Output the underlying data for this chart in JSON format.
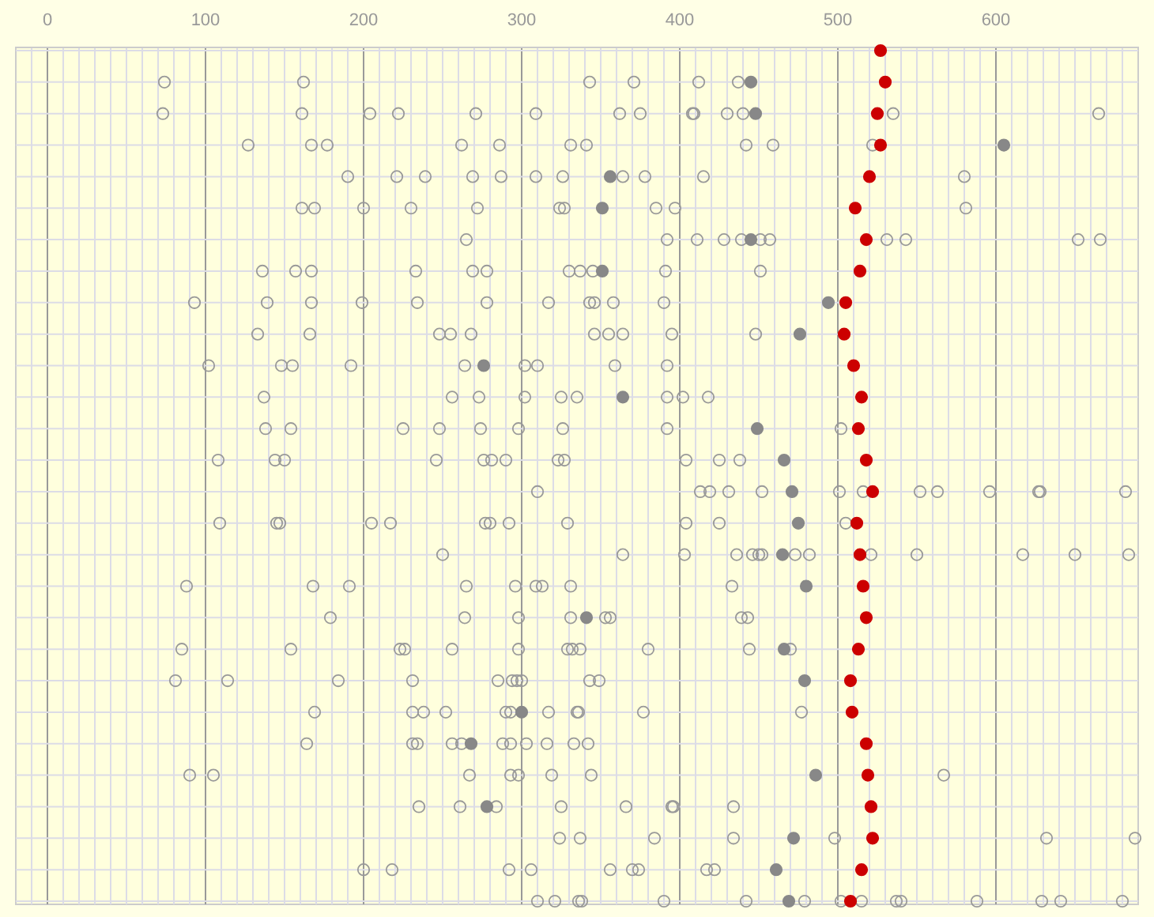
{
  "chart_data": {
    "type": "scatter",
    "orientation": "horizontal",
    "marker": "circle",
    "grid": true,
    "categories": [
      null,
      null,
      null,
      null,
      null,
      null,
      null,
      null,
      null,
      null,
      null,
      null,
      null,
      null,
      null,
      null,
      null,
      null,
      null,
      null,
      null,
      null,
      null,
      null,
      null,
      null,
      null,
      null
    ],
    "xlim": [
      -20,
      690
    ],
    "xticks": [
      {
        "value": -10,
        "label": null
      },
      0,
      {
        "value": 10,
        "label": null
      },
      {
        "value": 20,
        "label": null
      },
      {
        "value": 30,
        "label": null
      },
      {
        "value": 40,
        "label": null
      },
      {
        "value": 50,
        "label": null
      },
      {
        "value": 60,
        "label": null
      },
      {
        "value": 70,
        "label": null
      },
      {
        "value": 80,
        "label": null
      },
      {
        "value": 90,
        "label": null
      },
      100,
      {
        "value": 110,
        "label": null
      },
      {
        "value": 120,
        "label": null
      },
      {
        "value": 130,
        "label": null
      },
      {
        "value": 140,
        "label": null
      },
      {
        "value": 150,
        "label": null
      },
      {
        "value": 160,
        "label": null
      },
      {
        "value": 170,
        "label": null
      },
      {
        "value": 180,
        "label": null
      },
      {
        "value": 190,
        "label": null
      },
      200,
      {
        "value": 210,
        "label": null
      },
      {
        "value": 220,
        "label": null
      },
      {
        "value": 230,
        "label": null
      },
      {
        "value": 240,
        "label": null
      },
      {
        "value": 250,
        "label": null
      },
      {
        "value": 260,
        "label": null
      },
      {
        "value": 270,
        "label": null
      },
      {
        "value": 280,
        "label": null
      },
      {
        "value": 290,
        "label": null
      },
      300,
      {
        "value": 310,
        "label": null
      },
      {
        "value": 320,
        "label": null
      },
      {
        "value": 330,
        "label": null
      },
      {
        "value": 340,
        "label": null
      },
      {
        "value": 350,
        "label": null
      },
      {
        "value": 360,
        "label": null
      },
      {
        "value": 370,
        "label": null
      },
      {
        "value": 380,
        "label": null
      },
      {
        "value": 390,
        "label": null
      },
      400,
      {
        "value": 410,
        "label": null
      },
      {
        "value": 420,
        "label": null
      },
      {
        "value": 430,
        "label": null
      },
      {
        "value": 440,
        "label": null
      },
      {
        "value": 450,
        "label": null
      },
      {
        "value": 460,
        "label": null
      },
      {
        "value": 470,
        "label": null
      },
      {
        "value": 480,
        "label": null
      },
      {
        "value": 490,
        "label": null
      },
      500,
      {
        "value": 510,
        "label": null
      },
      {
        "value": 520,
        "label": null
      },
      {
        "value": 530,
        "label": null
      },
      {
        "value": 540,
        "label": null
      },
      {
        "value": 550,
        "label": null
      },
      {
        "value": 560,
        "label": null
      },
      {
        "value": 570,
        "label": null
      },
      {
        "value": 580,
        "label": null
      },
      {
        "value": 590,
        "label": null
      },
      600,
      {
        "value": 610,
        "label": null
      },
      {
        "value": 620,
        "label": null
      },
      {
        "value": 630,
        "label": null
      },
      {
        "value": 640,
        "label": null
      },
      {
        "value": 650,
        "label": null
      },
      {
        "value": 660,
        "label": null
      },
      {
        "value": 670,
        "label": null
      },
      {
        "value": 680,
        "label": null
      }
    ],
    "series": [
      {
        "color": "#999999",
        "values": [
          null,
          74,
          73,
          127,
          190,
          161,
          265,
          136,
          93,
          133,
          102,
          137,
          138,
          108,
          310,
          109,
          250,
          88,
          179,
          85,
          81,
          169,
          164,
          90,
          235,
          324,
          200,
          310
        ]
      },
      {
        "color": "#999999",
        "values": [
          null,
          162,
          161,
          167,
          221,
          169,
          392,
          157,
          139,
          166,
          148,
          256,
          154,
          144,
          413,
          145,
          364,
          168,
          264,
          154,
          114,
          231,
          231,
          105,
          261,
          337,
          218,
          321
        ]
      },
      {
        "color": "#999999",
        "values": [
          null,
          343,
          204,
          177,
          239,
          200,
          411,
          167,
          167,
          248,
          155,
          273,
          225,
          150,
          419,
          147,
          403,
          191,
          298,
          223,
          184,
          238,
          234,
          267,
          284,
          384,
          292,
          336
        ]
      },
      {
        "color": "#999999",
        "values": [
          null,
          371,
          222,
          262,
          269,
          230,
          428,
          233,
          199,
          255,
          192,
          302,
          248,
          246,
          431,
          205,
          436,
          265,
          331,
          226,
          231,
          252,
          256,
          293,
          325,
          434,
          306,
          338
        ]
      },
      {
        "color": "#999999",
        "values": [
          null,
          412,
          271,
          286,
          287,
          272,
          439,
          269,
          234,
          268,
          264,
          325,
          274,
          276,
          452,
          217,
          446,
          296,
          353,
          256,
          285,
          290,
          262,
          298,
          366,
          498,
          356,
          390
        ]
      },
      {
        "color": "#999999",
        "values": [
          null,
          437,
          309,
          331,
          309,
          324,
          null,
          278,
          278,
          346,
          302,
          335,
          298,
          281,
          501,
          277,
          450,
          309,
          356,
          298,
          294,
          293,
          288,
          319,
          395,
          632,
          370,
          442
        ]
      },
      {
        "color": "#999999",
        "values": [
          null,
          null,
          362,
          341,
          326,
          327,
          451,
          330,
          317,
          355,
          310,
          392,
          326,
          290,
          516,
          280,
          452,
          313,
          439,
          329,
          297,
          317,
          293,
          344,
          396,
          688,
          374,
          479
        ]
      },
      {
        "color": "#999999",
        "values": [
          null,
          null,
          375,
          442,
          364,
          385,
          457,
          337,
          343,
          364,
          359,
          402,
          392,
          323,
          552,
          292,
          473,
          331,
          443,
          332,
          300,
          335,
          303,
          567,
          434,
          null,
          417,
          502
        ]
      },
      {
        "color": "#999999",
        "values": [
          null,
          null,
          408,
          459,
          378,
          397,
          null,
          345,
          346,
          395,
          392,
          418,
          502,
          327,
          563,
          329,
          482,
          433,
          null,
          337,
          343,
          336,
          316,
          null,
          null,
          null,
          422,
          515
        ]
      },
      {
        "color": "#999999",
        "values": [
          null,
          null,
          409,
          522,
          415,
          581,
          531,
          391,
          358,
          448,
          null,
          null,
          null,
          404,
          596,
          404,
          521,
          null,
          null,
          380,
          349,
          377,
          333,
          null,
          null,
          null,
          null,
          537
        ]
      },
      {
        "color": "#999999",
        "values": [
          null,
          null,
          430,
          null,
          580,
          null,
          543,
          451,
          390,
          null,
          null,
          null,
          null,
          425,
          627,
          425,
          550,
          null,
          null,
          444,
          null,
          477,
          342,
          null,
          null,
          null,
          null,
          540
        ]
      },
      {
        "color": "#999999",
        "values": [
          null,
          null,
          440,
          null,
          null,
          null,
          652,
          null,
          null,
          null,
          null,
          null,
          null,
          438,
          628,
          505,
          617,
          null,
          null,
          470,
          null,
          null,
          null,
          null,
          null,
          null,
          null,
          588
        ]
      },
      {
        "color": "#999999",
        "values": [
          null,
          null,
          535,
          null,
          null,
          null,
          666,
          null,
          null,
          null,
          null,
          null,
          null,
          null,
          682,
          null,
          650,
          null,
          null,
          null,
          null,
          null,
          null,
          null,
          null,
          null,
          null,
          629
        ]
      },
      {
        "color": "#999999",
        "values": [
          null,
          null,
          665,
          null,
          null,
          null,
          null,
          null,
          null,
          null,
          null,
          null,
          null,
          null,
          null,
          null,
          684,
          null,
          null,
          null,
          null,
          null,
          null,
          null,
          null,
          null,
          null,
          641
        ]
      },
      {
        "color": "#999999",
        "values": [
          null,
          null,
          null,
          null,
          null,
          null,
          null,
          null,
          null,
          null,
          null,
          null,
          null,
          null,
          null,
          null,
          null,
          null,
          null,
          null,
          null,
          null,
          null,
          null,
          null,
          null,
          null,
          680
        ]
      },
      {
        "color": "#888888",
        "marker": "circle",
        "values": [
          null,
          445,
          448,
          605,
          356,
          351,
          445,
          351,
          494,
          476,
          276,
          364,
          449,
          466,
          471,
          475,
          465,
          480,
          341,
          466,
          479,
          300,
          268,
          486,
          278,
          472,
          461,
          469
        ]
      },
      {
        "color": "#cc0000",
        "marker": "circle",
        "values": [
          527,
          530,
          525,
          527,
          520,
          511,
          518,
          514,
          505,
          504,
          510,
          515,
          513,
          518,
          522,
          512,
          514,
          516,
          518,
          513,
          508,
          509,
          518,
          519,
          521,
          522,
          515,
          508
        ]
      }
    ]
  }
}
